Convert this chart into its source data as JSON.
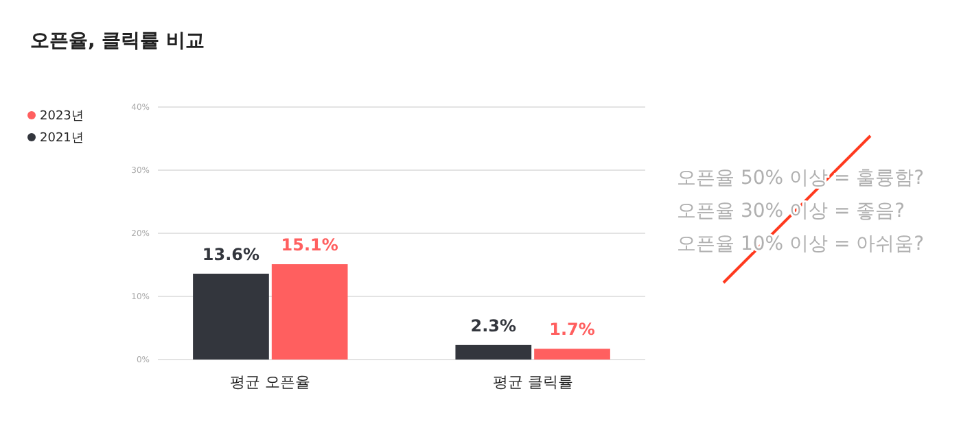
{
  "chart_data": {
    "type": "bar",
    "title": "오픈율, 클릭률 비교",
    "categories": [
      "평균 오픈율",
      "평균 클릭률"
    ],
    "series": [
      {
        "name": "2021년",
        "color": "#33363d",
        "values": [
          13.6,
          2.3
        ],
        "value_labels": [
          "13.6%",
          "2.3%"
        ]
      },
      {
        "name": "2023년",
        "color": "#ff5f5f",
        "values": [
          15.1,
          1.7
        ],
        "value_labels": [
          "15.1%",
          "1.7%"
        ]
      }
    ],
    "ylim": [
      0,
      40
    ],
    "yticks": [
      {
        "value": 0,
        "label": "0%"
      },
      {
        "value": 10,
        "label": "10%"
      },
      {
        "value": 20,
        "label": "20%"
      },
      {
        "value": 30,
        "label": "30%"
      },
      {
        "value": 40,
        "label": "40%"
      }
    ],
    "grid": "y",
    "legend": "left",
    "annotations": [
      "오픈율 50% 이상 = 훌륭함?",
      "오픈율 30% 이상 = 좋음?",
      "오픈율 10% 이상 = 아쉬움?"
    ]
  }
}
